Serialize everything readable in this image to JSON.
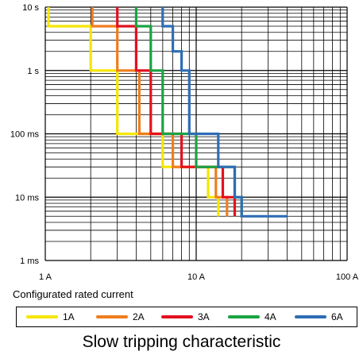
{
  "chart_data": {
    "type": "line",
    "title": "Slow tripping characteristic",
    "xlabel": "Configurated rated current",
    "ylabel": "",
    "xscale": "log",
    "yscale": "log",
    "xlim": [
      1,
      100
    ],
    "ylim": [
      0.001,
      10
    ],
    "grid": true,
    "legend_placement": "bottom",
    "x_tick_labels": [
      "1 A",
      "10 A",
      "100 A"
    ],
    "x_ticks": [
      1,
      10,
      100
    ],
    "y_tick_labels": [
      "1 ms",
      "10 ms",
      "100 ms",
      "1 s",
      "10 s"
    ],
    "y_ticks": [
      0.001,
      0.01,
      0.1,
      1,
      10
    ],
    "series": [
      {
        "name": "1A",
        "color": "#f5e600",
        "x": [
          1.05,
          1.05,
          2.0,
          2.0,
          3.0,
          3.0,
          6.0,
          6.0,
          12.0,
          12.0,
          14.0,
          14.0
        ],
        "y": [
          10,
          5,
          5,
          1,
          1,
          0.1,
          0.1,
          0.03,
          0.03,
          0.01,
          0.01,
          0.005
        ]
      },
      {
        "name": "2A",
        "color": "#f07d1e",
        "x": [
          2.05,
          2.05,
          3.0,
          3.0,
          4.2,
          4.2,
          7.0,
          7.0,
          13.5,
          13.5,
          16.0,
          16.0
        ],
        "y": [
          10,
          5,
          5,
          1,
          1,
          0.1,
          0.1,
          0.03,
          0.03,
          0.01,
          0.01,
          0.005
        ]
      },
      {
        "name": "3A",
        "color": "#e3101e",
        "x": [
          3.0,
          3.0,
          4.0,
          4.0,
          5.0,
          5.0,
          8.0,
          8.0,
          15.0,
          15.0,
          18.0,
          18.0
        ],
        "y": [
          10,
          5,
          5,
          1,
          1,
          0.1,
          0.1,
          0.03,
          0.03,
          0.01,
          0.01,
          0.005
        ]
      },
      {
        "name": "4A",
        "color": "#1aa343",
        "x": [
          4.0,
          4.0,
          5.0,
          5.0,
          6.0,
          6.0,
          10.0,
          10.0,
          18.0,
          18.0,
          20.0,
          20.0
        ],
        "y": [
          10,
          5,
          5,
          1,
          1,
          0.1,
          0.1,
          0.03,
          0.03,
          0.01,
          0.01,
          0.005
        ]
      },
      {
        "name": "6A",
        "color": "#2f6db5",
        "x": [
          6.0,
          6.0,
          7.0,
          7.0,
          8.0,
          8.0,
          9.0,
          9.0,
          14.0,
          14.0,
          18.0,
          18.0,
          20.0,
          20.0,
          40.0
        ],
        "y": [
          10,
          5,
          5,
          2,
          2,
          1,
          1,
          0.1,
          0.1,
          0.03,
          0.03,
          0.01,
          0.01,
          0.005,
          0.005
        ]
      }
    ]
  }
}
